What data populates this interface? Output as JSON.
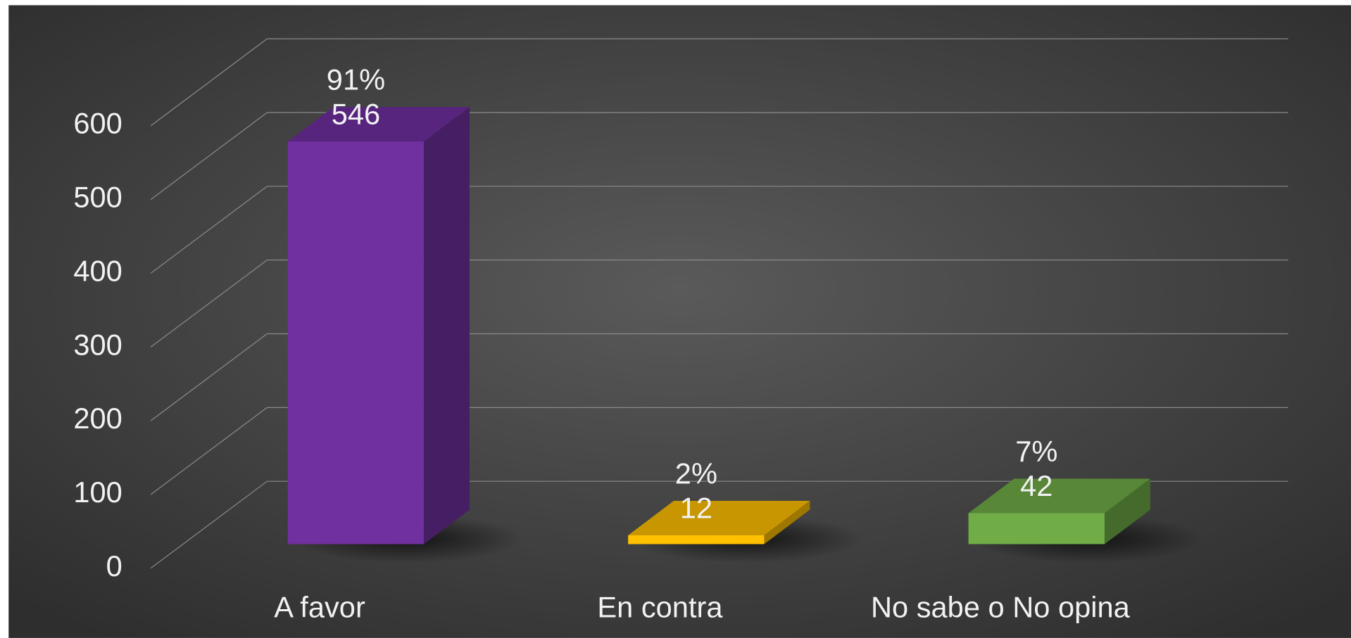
{
  "chart_data": {
    "type": "bar3d",
    "categories": [
      "A favor",
      "En contra",
      "No sabe o No opina"
    ],
    "values": [
      546,
      12,
      42
    ],
    "percent_labels": [
      "91%",
      "2%",
      "7%"
    ],
    "colors": [
      "#7030a0",
      "#ffc000",
      "#70ad47"
    ],
    "ylim": [
      0,
      600
    ],
    "yticks": [
      0,
      100,
      200,
      300,
      400,
      500,
      600
    ],
    "grid": true
  }
}
